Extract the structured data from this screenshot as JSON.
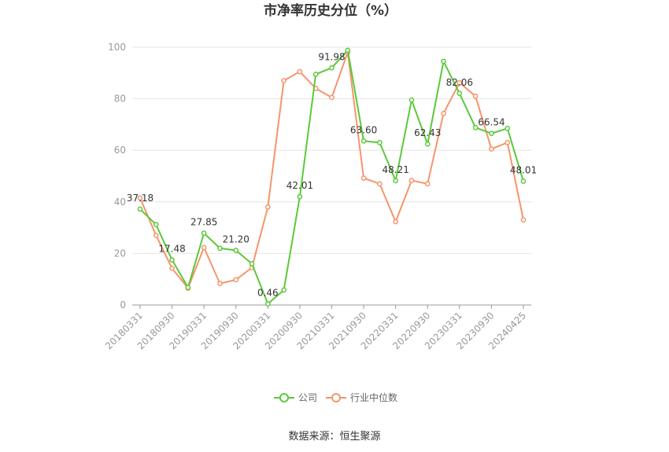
{
  "chart_data": {
    "type": "line",
    "title": "市净率历史分位（%）",
    "xlabel": "",
    "ylabel": "",
    "ylim": [
      0,
      100
    ],
    "yticks": [
      0,
      20,
      40,
      60,
      80,
      100
    ],
    "grid": true,
    "legend_position": "bottom",
    "x": [
      "20180331",
      "20180630",
      "20180930",
      "20181231",
      "20190331",
      "20190630",
      "20190930",
      "20191231",
      "20200331",
      "20200630",
      "20200930",
      "20201231",
      "20210331",
      "20210630",
      "20210930",
      "20211231",
      "20220331",
      "20220630",
      "20220930",
      "20221231",
      "20230331",
      "20230630",
      "20230930",
      "20231231",
      "20240425"
    ],
    "x_tick_labels": [
      "20180331",
      "20180930",
      "20190331",
      "20190930",
      "20200331",
      "20200930",
      "20210331",
      "20210930",
      "20220331",
      "20220930",
      "20230331",
      "20230930",
      "20240425"
    ],
    "series": [
      {
        "name": "公司",
        "color": "#5cc93a",
        "values": [
          37.18,
          31.2,
          17.48,
          6.8,
          27.85,
          22.0,
          21.2,
          16.0,
          0.46,
          5.8,
          42.01,
          89.5,
          91.98,
          98.8,
          63.6,
          63.0,
          48.21,
          79.5,
          62.43,
          94.5,
          82.06,
          68.8,
          66.54,
          68.5,
          48.01
        ],
        "data_labels": [
          {
            "index": 0,
            "text": "37.18"
          },
          {
            "index": 2,
            "text": "17.48"
          },
          {
            "index": 4,
            "text": "27.85"
          },
          {
            "index": 6,
            "text": "21.20"
          },
          {
            "index": 8,
            "text": "0.46"
          },
          {
            "index": 10,
            "text": "42.01"
          },
          {
            "index": 12,
            "text": "91.98"
          },
          {
            "index": 14,
            "text": "63.60"
          },
          {
            "index": 16,
            "text": "48.21"
          },
          {
            "index": 18,
            "text": "62.43"
          },
          {
            "index": 20,
            "text": "82.06"
          },
          {
            "index": 22,
            "text": "66.54"
          },
          {
            "index": 24,
            "text": "48.01"
          }
        ]
      },
      {
        "name": "行业中位数",
        "color": "#f5956c",
        "values": [
          41.5,
          27.0,
          14.2,
          6.5,
          22.3,
          8.3,
          9.8,
          14.5,
          38.0,
          87.0,
          90.5,
          84.0,
          80.5,
          98.0,
          49.2,
          47.0,
          32.3,
          48.3,
          47.0,
          74.3,
          86.2,
          81.0,
          60.5,
          63.0,
          33.0
        ]
      }
    ]
  },
  "footer": {
    "source": "数据来源：恒生聚源"
  }
}
